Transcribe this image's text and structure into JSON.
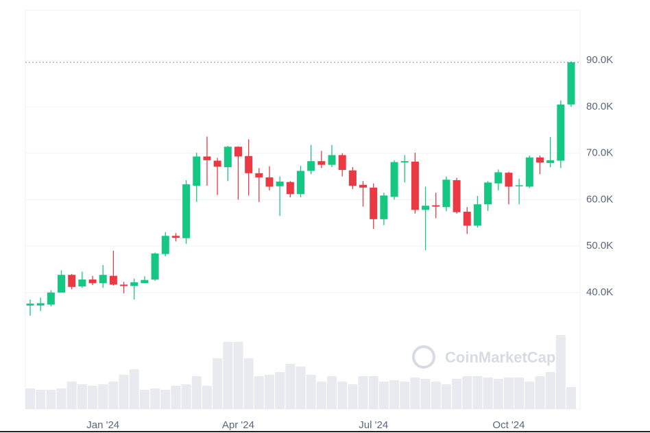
{
  "chart_data": {
    "type": "candlestick",
    "watermark": "CoinMarketCap",
    "categories": [
      null,
      null,
      null,
      null,
      null,
      null,
      null,
      "Jan '24",
      null,
      null,
      null,
      null,
      null,
      null,
      null,
      null,
      null,
      null,
      null,
      null,
      "Apr '24",
      null,
      null,
      null,
      null,
      null,
      null,
      null,
      null,
      null,
      null,
      null,
      null,
      "Jul '24",
      null,
      null,
      null,
      null,
      null,
      null,
      null,
      null,
      null,
      null,
      null,
      null,
      "Oct '24",
      null,
      null,
      null,
      null,
      null,
      null
    ],
    "open": [
      37.2,
      37.2,
      37.4,
      40.0,
      43.8,
      41.3,
      42.8,
      42.0,
      43.6,
      41.7,
      41.4,
      42.0,
      42.8,
      48.3,
      52.2,
      51.7,
      63.0,
      69.3,
      68.4,
      67.0,
      71.4,
      69.4,
      65.7,
      64.8,
      62.9,
      63.8,
      61.2,
      66.2,
      68.3,
      67.5,
      69.6,
      66.3,
      63.2,
      62.6,
      55.8,
      60.6,
      68.0,
      68.2,
      57.8,
      58.8,
      58.4,
      64.2,
      57.4,
      54.4,
      59.0,
      63.5,
      65.8,
      62.9,
      62.8,
      69.1,
      67.9,
      68.4,
      80.5
    ],
    "high": [
      38.5,
      38.9,
      40.5,
      44.8,
      44.0,
      44.5,
      43.6,
      45.9,
      49.0,
      42.3,
      43.0,
      43.5,
      48.6,
      53.0,
      52.8,
      64.2,
      70.1,
      73.6,
      69.0,
      71.6,
      71.5,
      73.0,
      66.8,
      67.2,
      65.0,
      64.0,
      67.3,
      71.8,
      70.5,
      71.8,
      70.0,
      67.0,
      64.0,
      63.5,
      61.5,
      68.5,
      69.6,
      70.1,
      62.8,
      61.5,
      65.0,
      64.7,
      58.4,
      60.8,
      64.0,
      66.5,
      66.0,
      64.5,
      69.5,
      69.5,
      73.5,
      81.4,
      89.8
    ],
    "low": [
      35.0,
      36.0,
      37.0,
      40.0,
      40.7,
      41.0,
      41.6,
      41.0,
      41.5,
      39.8,
      38.5,
      42.0,
      42.5,
      47.8,
      51.0,
      50.5,
      59.5,
      63.0,
      61.0,
      64.0,
      60.0,
      60.9,
      59.5,
      62.0,
      56.5,
      60.5,
      60.5,
      65.5,
      66.8,
      67.0,
      65.0,
      62.3,
      58.5,
      53.7,
      54.5,
      60.0,
      63.7,
      57.0,
      49.1,
      56.0,
      57.5,
      57.0,
      52.6,
      54.0,
      57.6,
      62.0,
      59.0,
      59.0,
      62.5,
      65.5,
      67.0,
      66.8,
      80.0
    ],
    "close": [
      37.6,
      37.7,
      40.0,
      43.8,
      41.2,
      42.8,
      42.0,
      43.8,
      41.7,
      41.4,
      42.2,
      42.7,
      48.4,
      52.2,
      51.8,
      63.3,
      69.3,
      68.5,
      67.1,
      71.4,
      69.3,
      65.7,
      64.8,
      62.8,
      63.9,
      61.2,
      66.2,
      68.3,
      67.5,
      69.6,
      66.4,
      63.0,
      62.6,
      55.8,
      60.9,
      68.1,
      68.3,
      57.8,
      58.7,
      58.5,
      64.3,
      57.3,
      54.4,
      59.0,
      63.7,
      65.9,
      62.8,
      63.1,
      69.1,
      68.0,
      68.5,
      80.5,
      89.6
    ],
    "volume": [
      30,
      28,
      28,
      30,
      40,
      36,
      34,
      36,
      40,
      50,
      58,
      28,
      30,
      28,
      34,
      36,
      48,
      34,
      74,
      98,
      98,
      74,
      48,
      50,
      54,
      66,
      62,
      50,
      40,
      48,
      40,
      36,
      48,
      48,
      40,
      42,
      40,
      46,
      44,
      40,
      36,
      44,
      48,
      48,
      46,
      44,
      46,
      46,
      40,
      48,
      54,
      108,
      32
    ],
    "up_color": "#16c784",
    "down_color": "#ea3943",
    "ylim": [
      14.9,
      100.8
    ],
    "yticks": [
      {
        "value": 40,
        "label": "40.0K"
      },
      {
        "value": 50,
        "label": "50.0K"
      },
      {
        "value": 60,
        "label": "60.0K"
      },
      {
        "value": 70,
        "label": "70.0K"
      },
      {
        "value": 80,
        "label": "80.0K"
      },
      {
        "value": 90,
        "label": "90.0K"
      }
    ],
    "grid": true
  }
}
